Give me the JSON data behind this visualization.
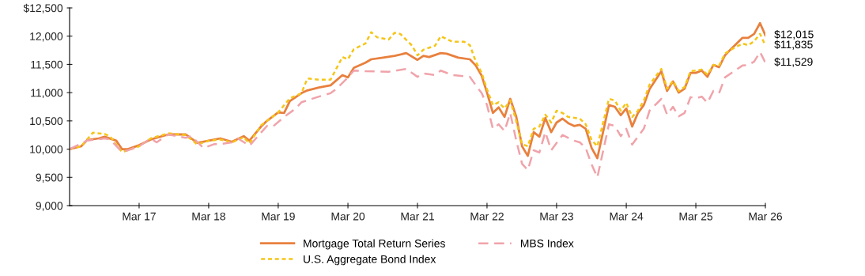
{
  "chart_data": {
    "type": "line",
    "xlim": [
      "2016-03",
      "2026-03"
    ],
    "xticks": [
      {
        "value": "2017-03",
        "label": "Mar 17"
      },
      {
        "value": "2018-03",
        "label": "Mar 18"
      },
      {
        "value": "2019-03",
        "label": "Mar 19"
      },
      {
        "value": "2020-03",
        "label": "Mar 20"
      },
      {
        "value": "2021-03",
        "label": "Mar 21"
      },
      {
        "value": "2022-03",
        "label": "Mar 22"
      },
      {
        "value": "2023-03",
        "label": "Mar 23"
      },
      {
        "value": "2024-03",
        "label": "Mar 24"
      },
      {
        "value": "2025-03",
        "label": "Mar 25"
      },
      {
        "value": "2026-03",
        "label": "Mar 26"
      }
    ],
    "ylim": [
      9000,
      12500
    ],
    "yticks": [
      {
        "value": 9000,
        "label": "9,000"
      },
      {
        "value": 9500,
        "label": "9,500"
      },
      {
        "value": 10000,
        "label": "10,000"
      },
      {
        "value": 10500,
        "label": "10,500"
      },
      {
        "value": 11000,
        "label": "11,000"
      },
      {
        "value": 11500,
        "label": "11,500"
      },
      {
        "value": 12000,
        "label": "12,000"
      },
      {
        "value": 12500,
        "label": "$12,500"
      }
    ],
    "grid": false,
    "legend": "bottom",
    "marker": "none",
    "series": [
      {
        "name": "Mortgage Total Return Series",
        "color": "#e8803e",
        "line_style": "solid",
        "x": [
          "2016-03",
          "2016-05",
          "2016-06",
          "2016-08",
          "2016-09",
          "2016-11",
          "2016-12",
          "2017-01",
          "2017-03",
          "2017-05",
          "2017-08",
          "2017-11",
          "2018-01",
          "2018-03",
          "2018-05",
          "2018-07",
          "2018-09",
          "2018-10",
          "2018-12",
          "2019-01",
          "2019-03",
          "2019-04",
          "2019-05",
          "2019-07",
          "2019-08",
          "2019-10",
          "2019-12",
          "2020-02",
          "2020-03",
          "2020-04",
          "2020-06",
          "2020-07",
          "2020-09",
          "2020-11",
          "2021-01",
          "2021-03",
          "2021-04",
          "2021-05",
          "2021-07",
          "2021-08",
          "2021-10",
          "2021-12",
          "2022-01",
          "2022-02",
          "2022-03",
          "2022-04",
          "2022-05",
          "2022-06",
          "2022-07",
          "2022-08",
          "2022-09",
          "2022-10",
          "2022-11",
          "2022-12",
          "2023-01",
          "2023-02",
          "2023-03",
          "2023-04",
          "2023-05",
          "2023-06",
          "2023-07",
          "2023-08",
          "2023-09",
          "2023-10",
          "2023-12",
          "2024-01",
          "2024-02",
          "2024-03",
          "2024-04",
          "2024-05",
          "2024-06",
          "2024-07",
          "2024-09",
          "2024-10",
          "2024-11",
          "2024-12",
          "2025-01",
          "2025-02",
          "2025-03",
          "2025-04",
          "2025-05",
          "2025-06",
          "2025-07",
          "2025-08",
          "2025-09",
          "2025-11",
          "2025-12",
          "2026-01",
          "2026-02",
          "2026-03"
        ],
        "values": [
          10000,
          10050,
          10160,
          10190,
          10220,
          10150,
          10000,
          10000,
          10070,
          10170,
          10260,
          10260,
          10110,
          10150,
          10190,
          10130,
          10230,
          10150,
          10400,
          10500,
          10650,
          10640,
          10850,
          10990,
          11040,
          11090,
          11130,
          11310,
          11270,
          11440,
          11530,
          11590,
          11620,
          11650,
          11700,
          11580,
          11650,
          11630,
          11700,
          11690,
          11620,
          11590,
          11480,
          11300,
          11000,
          10640,
          10740,
          10570,
          10890,
          10580,
          10050,
          9880,
          10300,
          10220,
          10550,
          10300,
          10470,
          10540,
          10460,
          10410,
          10430,
          10360,
          10020,
          9840,
          10780,
          10750,
          10600,
          10720,
          10400,
          10640,
          10780,
          11060,
          11380,
          11030,
          11200,
          11000,
          11070,
          11350,
          11350,
          11390,
          11280,
          11490,
          11450,
          11660,
          11770,
          11970,
          11970,
          12040,
          12230,
          12015
        ]
      },
      {
        "name": "U.S. Aggregate Bond Index",
        "color": "#f5c518",
        "line_style": "dotted",
        "x": [
          "2016-03",
          "2016-05",
          "2016-07",
          "2016-09",
          "2016-10",
          "2016-12",
          "2017-01",
          "2017-03",
          "2017-05",
          "2017-08",
          "2017-11",
          "2018-01",
          "2018-03",
          "2018-05",
          "2018-07",
          "2018-09",
          "2018-10",
          "2018-12",
          "2019-03",
          "2019-05",
          "2019-07",
          "2019-08",
          "2019-10",
          "2019-12",
          "2020-02",
          "2020-03",
          "2020-04",
          "2020-06",
          "2020-07",
          "2020-08",
          "2020-10",
          "2020-11",
          "2020-12",
          "2021-02",
          "2021-03",
          "2021-04",
          "2021-06",
          "2021-07",
          "2021-09",
          "2021-10",
          "2021-11",
          "2021-12",
          "2022-01",
          "2022-02",
          "2022-03",
          "2022-04",
          "2022-05",
          "2022-06",
          "2022-07",
          "2022-08",
          "2022-09",
          "2022-10",
          "2022-11",
          "2022-12",
          "2023-01",
          "2023-02",
          "2023-03",
          "2023-04",
          "2023-05",
          "2023-07",
          "2023-08",
          "2023-09",
          "2023-10",
          "2023-12",
          "2024-01",
          "2024-02",
          "2024-03",
          "2024-04",
          "2024-05",
          "2024-06",
          "2024-07",
          "2024-09",
          "2024-10",
          "2024-11",
          "2024-12",
          "2025-01",
          "2025-02",
          "2025-03",
          "2025-04",
          "2025-05",
          "2025-06",
          "2025-07",
          "2025-08",
          "2025-09",
          "2025-11",
          "2025-12",
          "2026-01",
          "2026-02",
          "2026-03"
        ],
        "values": [
          10000,
          10050,
          10290,
          10270,
          10220,
          9950,
          9980,
          10050,
          10190,
          10280,
          10250,
          10080,
          10150,
          10170,
          10120,
          10210,
          10100,
          10420,
          10650,
          10900,
          10990,
          11250,
          11230,
          11230,
          11630,
          11590,
          11770,
          11870,
          12070,
          11980,
          11940,
          12060,
          12040,
          11830,
          11660,
          11760,
          11830,
          12000,
          11900,
          11900,
          11900,
          11840,
          11550,
          11350,
          11060,
          10780,
          10830,
          10720,
          10860,
          10500,
          10090,
          10050,
          10360,
          10400,
          10610,
          10470,
          10680,
          10640,
          10570,
          10540,
          10440,
          10160,
          10050,
          10890,
          10860,
          10680,
          10820,
          10570,
          10680,
          10860,
          11140,
          11420,
          11070,
          11210,
          11030,
          11100,
          11380,
          11390,
          11410,
          11320,
          11490,
          11480,
          11690,
          11760,
          11870,
          11840,
          11910,
          12040,
          11835
        ]
      },
      {
        "name": "MBS Index",
        "color": "#f0a3aa",
        "line_style": "dashed",
        "x": [
          "2016-03",
          "2016-06",
          "2016-09",
          "2016-10",
          "2016-12",
          "2017-01",
          "2017-03",
          "2017-05",
          "2017-06",
          "2017-08",
          "2017-11",
          "2017-12",
          "2018-02",
          "2018-04",
          "2018-05",
          "2018-07",
          "2018-08",
          "2018-10",
          "2019-01",
          "2019-02",
          "2019-04",
          "2019-06",
          "2019-07",
          "2019-10",
          "2019-12",
          "2020-01",
          "2020-03",
          "2020-04",
          "2020-06",
          "2020-10",
          "2021-01",
          "2021-03",
          "2021-04",
          "2021-06",
          "2021-07",
          "2021-09",
          "2021-12",
          "2022-01",
          "2022-02",
          "2022-03",
          "2022-04",
          "2022-05",
          "2022-06",
          "2022-07",
          "2022-08",
          "2022-09",
          "2022-10",
          "2022-11",
          "2022-12",
          "2023-01",
          "2023-02",
          "2023-04",
          "2023-06",
          "2023-07",
          "2023-08",
          "2023-09",
          "2023-10",
          "2023-12",
          "2024-01",
          "2024-02",
          "2024-03",
          "2024-04",
          "2024-05",
          "2024-06",
          "2024-07",
          "2024-09",
          "2024-10",
          "2024-11",
          "2024-12",
          "2025-01",
          "2025-02",
          "2025-03",
          "2025-04",
          "2025-05",
          "2025-06",
          "2025-07",
          "2025-08",
          "2025-10",
          "2025-11",
          "2025-12",
          "2026-01",
          "2026-02",
          "2026-03"
        ],
        "values": [
          10000,
          10150,
          10190,
          10170,
          9950,
          9980,
          10050,
          10190,
          10120,
          10260,
          10200,
          10230,
          10020,
          10090,
          10090,
          10120,
          10190,
          10060,
          10410,
          10400,
          10570,
          10720,
          10830,
          10930,
          10990,
          11070,
          11270,
          11390,
          11380,
          11370,
          11420,
          11280,
          11340,
          11310,
          11390,
          11310,
          11280,
          11130,
          10990,
          10780,
          10360,
          10440,
          10320,
          10640,
          10160,
          9740,
          9630,
          9980,
          9940,
          10300,
          9980,
          10250,
          10150,
          10120,
          10020,
          9730,
          9500,
          10440,
          10410,
          10230,
          10360,
          10080,
          10220,
          10360,
          10680,
          10890,
          10610,
          10750,
          10580,
          10640,
          10920,
          10900,
          10930,
          10820,
          11030,
          10990,
          11270,
          11410,
          11480,
          11490,
          11550,
          11720,
          11529
        ]
      }
    ],
    "annotations": [
      {
        "text": "$12,015",
        "x": "2026-03",
        "y": 12015
      },
      {
        "text": "$11,835",
        "x": "2026-03",
        "y": 11835
      },
      {
        "text": "$11,529",
        "x": "2026-03",
        "y": 11529
      }
    ]
  }
}
